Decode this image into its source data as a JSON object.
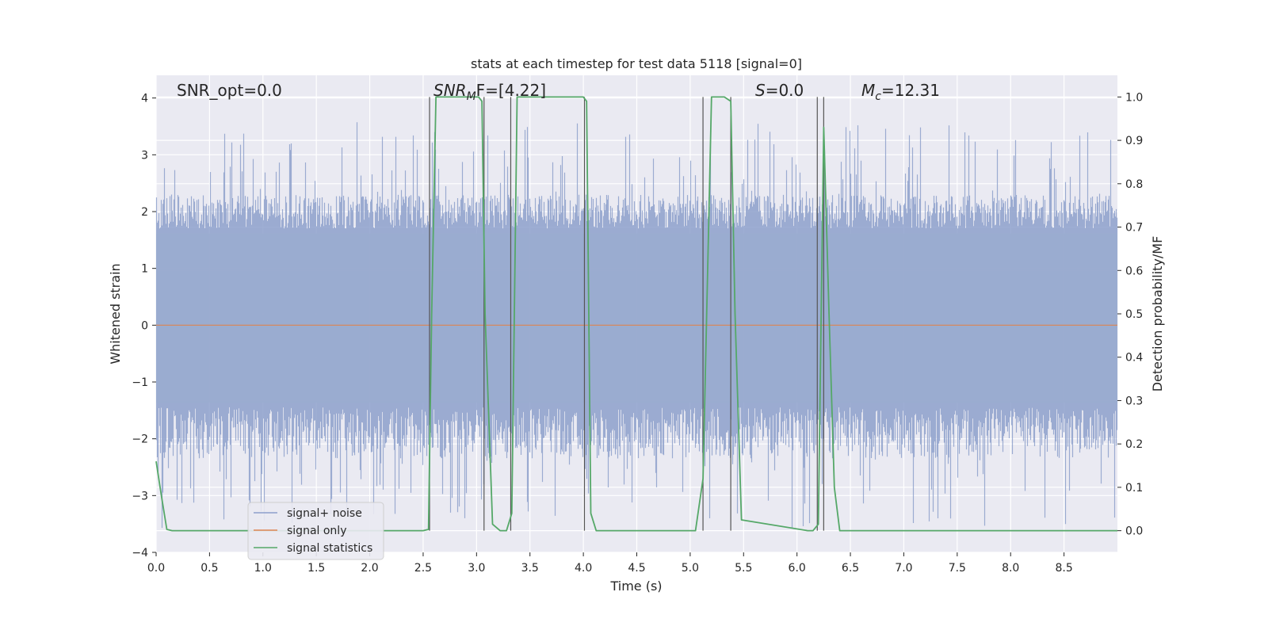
{
  "chart_data": {
    "type": "line",
    "title": "stats at each timestep for test data 5118 [signal=0]",
    "xlabel": "Time (s)",
    "ylabel_left": "Whitened strain",
    "ylabel_right": "Detection probability/MF",
    "xlim": [
      0,
      9
    ],
    "ylim_left": [
      -4,
      4.4
    ],
    "ylim_right": [
      -0.05,
      1.05
    ],
    "x_ticks": [
      "0.0",
      "0.5",
      "1.0",
      "1.5",
      "2.0",
      "2.5",
      "3.0",
      "3.5",
      "4.0",
      "4.5",
      "5.0",
      "5.5",
      "6.0",
      "6.5",
      "7.0",
      "7.5",
      "8.0",
      "8.5"
    ],
    "y_left_ticks": [
      "4",
      "3",
      "2",
      "1",
      "0",
      "−1",
      "−2",
      "−3",
      "−4"
    ],
    "y_right_ticks": [
      "1.0",
      "0.9",
      "0.8",
      "0.7",
      "0.6",
      "0.5",
      "0.4",
      "0.3",
      "0.2",
      "0.1",
      "0.0"
    ],
    "grid": true,
    "legend_placement": "lower-left",
    "legend": [
      {
        "name": "signal+ noise",
        "color": "#8da0cb"
      },
      {
        "name": "signal only",
        "color": "#dd8452"
      },
      {
        "name": "signal statistics",
        "color": "#55a868"
      }
    ],
    "annotations": {
      "snr_opt": "SNR_opt=0.0",
      "snr_mf_main": "SNR",
      "snr_mf_sub": "M",
      "snr_mf_rest": "F=[4.22]",
      "s_italic": "S",
      "s_rest": "=0.0",
      "mc_main": "M",
      "mc_sub": "c",
      "mc_rest": "=12.31"
    },
    "series": [
      {
        "name": "signal only",
        "axis": "left",
        "x": [
          0,
          9
        ],
        "y": [
          0,
          0
        ]
      },
      {
        "name": "signal statistics",
        "axis": "right",
        "x": [
          0.0,
          0.05,
          0.1,
          0.15,
          2.5,
          2.55,
          2.58,
          2.62,
          3.02,
          3.05,
          3.08,
          3.15,
          3.22,
          3.28,
          3.33,
          3.38,
          4.0,
          4.03,
          4.07,
          4.12,
          5.05,
          5.12,
          5.2,
          5.32,
          5.38,
          5.42,
          5.48,
          6.1,
          6.15,
          6.2,
          6.25,
          6.3,
          6.35,
          6.4,
          9.0
        ],
        "y": [
          0.16,
          0.08,
          0.003,
          0.0,
          0.0,
          0.003,
          0.5,
          1.0,
          1.0,
          0.99,
          0.5,
          0.015,
          0.0,
          0.0,
          0.04,
          1.0,
          1.0,
          0.99,
          0.04,
          0.0,
          0.0,
          0.12,
          1.0,
          1.0,
          0.99,
          0.5,
          0.025,
          0.0,
          0.0,
          0.015,
          0.93,
          0.5,
          0.1,
          0.0,
          0.0
        ]
      }
    ],
    "noise_band": {
      "name": "signal+ noise",
      "typical_amplitude": 1.7,
      "peak_amplitude": 3.6
    },
    "vertical_markers": [
      2.56,
      3.07,
      3.32,
      4.01,
      5.12,
      5.38,
      6.19,
      6.25
    ]
  }
}
